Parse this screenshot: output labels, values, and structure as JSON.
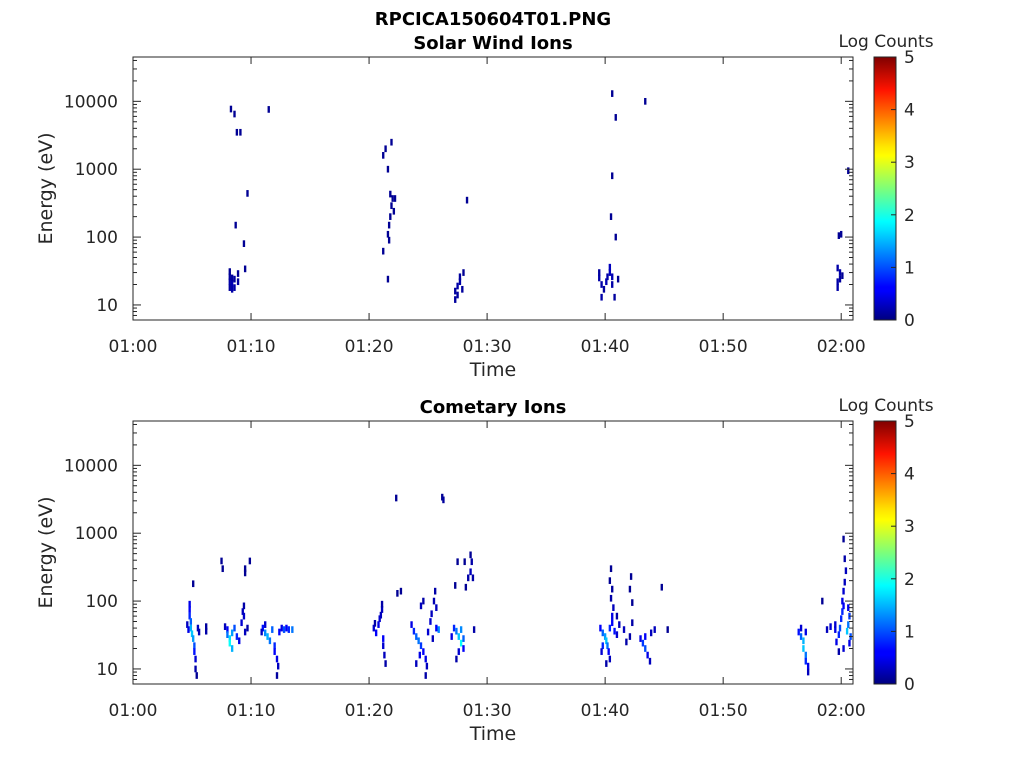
{
  "page_title": "RPCICA150604T01.PNG",
  "colorbar": {
    "label": "Log Counts",
    "ticks": [
      "0",
      "1",
      "2",
      "3",
      "4",
      "5"
    ],
    "min": 0,
    "max": 5
  },
  "chart_data": [
    {
      "type": "heatmap",
      "title": "Solar Wind Ions",
      "xlabel": "Time",
      "ylabel": "Energy (eV)",
      "xlim_min": [
        60,
        121
      ],
      "ylim": [
        6,
        45000
      ],
      "y_scale": "log",
      "x_ticks": [
        "01:00",
        "01:10",
        "01:20",
        "01:30",
        "01:40",
        "01:50",
        "02:00"
      ],
      "y_ticks": [
        "10",
        "100",
        "1000",
        "10000"
      ],
      "colorbar_label": "Log Counts",
      "cells": [
        [
          68.2,
          18,
          0.15
        ],
        [
          68.2,
          22,
          0.2
        ],
        [
          68.2,
          26,
          0.15
        ],
        [
          68.2,
          31,
          0.1
        ],
        [
          68.4,
          17,
          0.2
        ],
        [
          68.4,
          21,
          0.25
        ],
        [
          68.4,
          25,
          0.15
        ],
        [
          68.6,
          18,
          0.2
        ],
        [
          68.6,
          24,
          0.15
        ],
        [
          68.9,
          22,
          0.15
        ],
        [
          68.9,
          29,
          0.1
        ],
        [
          69.5,
          34,
          0.1
        ],
        [
          68.3,
          7700,
          0.1
        ],
        [
          68.6,
          6500,
          0.1
        ],
        [
          68.8,
          3500,
          0.1
        ],
        [
          69.1,
          3500,
          0.1
        ],
        [
          68.7,
          150,
          0.1
        ],
        [
          69.7,
          440,
          0.1
        ],
        [
          69.4,
          80,
          0.1
        ],
        [
          71.5,
          7600,
          0.1
        ],
        [
          81.2,
          1600,
          0.1
        ],
        [
          81.4,
          2000,
          0.1
        ],
        [
          81.6,
          1000,
          0.1
        ],
        [
          81.9,
          2500,
          0.1
        ],
        [
          81.8,
          430,
          0.1
        ],
        [
          82.0,
          370,
          0.1
        ],
        [
          82.2,
          370,
          0.1
        ],
        [
          81.9,
          290,
          0.1
        ],
        [
          82.1,
          240,
          0.1
        ],
        [
          81.8,
          200,
          0.1
        ],
        [
          81.7,
          150,
          0.1
        ],
        [
          81.6,
          110,
          0.1
        ],
        [
          81.7,
          90,
          0.1
        ],
        [
          81.2,
          62,
          0.1
        ],
        [
          81.6,
          24,
          0.1
        ],
        [
          87.3,
          12,
          0.15
        ],
        [
          87.3,
          16,
          0.15
        ],
        [
          87.5,
          14,
          0.15
        ],
        [
          87.5,
          19,
          0.2
        ],
        [
          87.7,
          22,
          0.2
        ],
        [
          87.7,
          26,
          0.15
        ],
        [
          87.9,
          17,
          0.15
        ],
        [
          88.0,
          30,
          0.1
        ],
        [
          88.3,
          350,
          0.1
        ],
        [
          99.5,
          30,
          0.15
        ],
        [
          99.5,
          25,
          0.2
        ],
        [
          99.7,
          20,
          0.2
        ],
        [
          99.7,
          13,
          0.2
        ],
        [
          99.9,
          17,
          0.15
        ],
        [
          100.1,
          22,
          0.25
        ],
        [
          100.2,
          26,
          0.2
        ],
        [
          100.4,
          36,
          0.3
        ],
        [
          100.4,
          30,
          0.3
        ],
        [
          100.6,
          26,
          0.25
        ],
        [
          100.6,
          20,
          0.2
        ],
        [
          100.8,
          13,
          0.15
        ],
        [
          101.1,
          24,
          0.1
        ],
        [
          100.6,
          13000,
          0.1
        ],
        [
          100.6,
          800,
          0.1
        ],
        [
          100.5,
          200,
          0.1
        ],
        [
          100.9,
          100,
          0.1
        ],
        [
          100.9,
          5800,
          0.1
        ],
        [
          103.4,
          10000,
          0.1
        ],
        [
          119.7,
          22,
          0.2
        ],
        [
          119.7,
          18,
          0.2
        ],
        [
          119.7,
          35,
          0.2
        ],
        [
          119.9,
          30,
          0.2
        ],
        [
          119.9,
          24,
          0.15
        ],
        [
          120.0,
          110,
          0.1
        ],
        [
          119.8,
          105,
          0.1
        ],
        [
          120.1,
          27,
          0.1
        ],
        [
          120.6,
          950,
          0.1
        ]
      ]
    },
    {
      "type": "heatmap",
      "title": "Cometary Ions",
      "xlabel": "Time",
      "ylabel": "Energy (eV)",
      "xlim_min": [
        60,
        121
      ],
      "ylim": [
        6,
        45000
      ],
      "y_scale": "log",
      "x_ticks": [
        "01:00",
        "01:10",
        "01:20",
        "01:30",
        "01:40",
        "01:50",
        "02:00"
      ],
      "y_ticks": [
        "10",
        "100",
        "1000",
        "10000"
      ],
      "colorbar_label": "Log Counts",
      "cells": [
        [
          64.8,
          90,
          0.5
        ],
        [
          64.8,
          75,
          0.6
        ],
        [
          64.8,
          60,
          0.8
        ],
        [
          64.9,
          50,
          1.1
        ],
        [
          64.9,
          40,
          1.5
        ],
        [
          65.0,
          33,
          1.6
        ],
        [
          65.1,
          28,
          1.4
        ],
        [
          65.2,
          22,
          1.0
        ],
        [
          65.2,
          18,
          0.7
        ],
        [
          65.3,
          14,
          0.4
        ],
        [
          65.3,
          10,
          0.2
        ],
        [
          65.4,
          8,
          0.1
        ],
        [
          64.6,
          45,
          0.3
        ],
        [
          64.7,
          38,
          0.5
        ],
        [
          65.5,
          40,
          0.3
        ],
        [
          65.6,
          35,
          0.25
        ],
        [
          66.2,
          36,
          0.2
        ],
        [
          66.2,
          42,
          0.15
        ],
        [
          65.1,
          180,
          0.1
        ],
        [
          68.0,
          38,
          0.6
        ],
        [
          68.0,
          32,
          1.2
        ],
        [
          68.2,
          28,
          1.7
        ],
        [
          68.2,
          24,
          1.9
        ],
        [
          68.4,
          20,
          1.5
        ],
        [
          68.4,
          34,
          1.4
        ],
        [
          68.6,
          40,
          1.0
        ],
        [
          68.8,
          30,
          0.8
        ],
        [
          69.0,
          26,
          0.5
        ],
        [
          69.2,
          48,
          0.4
        ],
        [
          69.3,
          70,
          0.3
        ],
        [
          69.4,
          85,
          0.2
        ],
        [
          69.4,
          60,
          0.35
        ],
        [
          69.5,
          35,
          0.3
        ],
        [
          67.8,
          42,
          0.3
        ],
        [
          69.7,
          40,
          0.2
        ],
        [
          69.5,
          260,
          0.1
        ],
        [
          69.5,
          300,
          0.1
        ],
        [
          67.5,
          390,
          0.1
        ],
        [
          67.6,
          300,
          0.1
        ],
        [
          69.9,
          390,
          0.1
        ],
        [
          71.0,
          40,
          0.7
        ],
        [
          71.2,
          34,
          1.3
        ],
        [
          71.4,
          30,
          1.5
        ],
        [
          71.6,
          26,
          1.2
        ],
        [
          71.8,
          38,
          1.1
        ],
        [
          72.0,
          22,
          0.8
        ],
        [
          72.0,
          18,
          0.6
        ],
        [
          72.2,
          14,
          0.5
        ],
        [
          72.3,
          11,
          0.3
        ],
        [
          72.2,
          8,
          0.15
        ],
        [
          72.4,
          35,
          0.6
        ],
        [
          72.6,
          40,
          0.5
        ],
        [
          72.8,
          38,
          1.0
        ],
        [
          73.0,
          40,
          0.6
        ],
        [
          73.2,
          38,
          0.8
        ],
        [
          73.5,
          38,
          1.2
        ],
        [
          71.2,
          45,
          0.4
        ],
        [
          70.9,
          35,
          0.3
        ],
        [
          80.4,
          40,
          0.4
        ],
        [
          80.6,
          34,
          0.6
        ],
        [
          80.8,
          45,
          0.5
        ],
        [
          80.9,
          55,
          0.4
        ],
        [
          81.0,
          62,
          0.3
        ],
        [
          81.1,
          75,
          0.3
        ],
        [
          81.1,
          90,
          0.2
        ],
        [
          81.2,
          28,
          0.6
        ],
        [
          81.2,
          22,
          0.4
        ],
        [
          81.3,
          16,
          0.3
        ],
        [
          81.4,
          12,
          0.2
        ],
        [
          80.5,
          47,
          0.2
        ],
        [
          82.3,
          3300,
          0.1
        ],
        [
          82.4,
          130,
          0.1
        ],
        [
          82.7,
          140,
          0.1
        ],
        [
          86.2,
          3400,
          0.1
        ],
        [
          86.3,
          3100,
          0.15
        ],
        [
          83.6,
          45,
          0.5
        ],
        [
          83.8,
          36,
          0.8
        ],
        [
          84.0,
          30,
          1.1
        ],
        [
          84.2,
          26,
          1.2
        ],
        [
          84.4,
          22,
          0.9
        ],
        [
          84.6,
          18,
          0.6
        ],
        [
          84.8,
          14,
          0.5
        ],
        [
          84.9,
          11,
          0.3
        ],
        [
          84.8,
          8,
          0.2
        ],
        [
          84.3,
          16,
          0.5
        ],
        [
          84.0,
          12,
          0.3
        ],
        [
          85.0,
          35,
          0.4
        ],
        [
          85.2,
          50,
          0.4
        ],
        [
          85.3,
          65,
          0.3
        ],
        [
          85.5,
          100,
          0.25
        ],
        [
          85.6,
          140,
          0.2
        ],
        [
          85.4,
          28,
          0.3
        ],
        [
          85.7,
          40,
          0.6
        ],
        [
          85.9,
          38,
          1.3
        ],
        [
          85.7,
          80,
          0.3
        ],
        [
          84.4,
          85,
          0.3
        ],
        [
          84.6,
          100,
          0.2
        ],
        [
          87.0,
          30,
          0.5
        ],
        [
          87.2,
          40,
          0.8
        ],
        [
          87.4,
          36,
          1.2
        ],
        [
          87.6,
          30,
          1.6
        ],
        [
          87.8,
          24,
          1.9
        ],
        [
          87.8,
          38,
          1.3
        ],
        [
          88.0,
          28,
          1.1
        ],
        [
          88.0,
          20,
          0.6
        ],
        [
          87.6,
          18,
          0.4
        ],
        [
          87.4,
          14,
          0.2
        ],
        [
          88.4,
          220,
          0.2
        ],
        [
          88.6,
          270,
          0.3
        ],
        [
          88.7,
          380,
          0.2
        ],
        [
          88.6,
          480,
          0.1
        ],
        [
          88.8,
          220,
          0.2
        ],
        [
          88.2,
          160,
          0.1
        ],
        [
          87.3,
          170,
          0.1
        ],
        [
          88.1,
          380,
          0.1
        ],
        [
          88.9,
          38,
          0.2
        ],
        [
          87.5,
          380,
          0.1
        ],
        [
          99.6,
          40,
          0.6
        ],
        [
          99.8,
          34,
          1.1
        ],
        [
          100.0,
          30,
          1.4
        ],
        [
          100.1,
          26,
          1.6
        ],
        [
          100.2,
          22,
          1.2
        ],
        [
          99.8,
          22,
          0.8
        ],
        [
          99.7,
          18,
          0.4
        ],
        [
          100.3,
          18,
          0.6
        ],
        [
          100.4,
          14,
          0.3
        ],
        [
          100.1,
          12,
          0.2
        ],
        [
          100.4,
          40,
          0.8
        ],
        [
          100.6,
          48,
          0.6
        ],
        [
          100.6,
          60,
          0.5
        ],
        [
          100.7,
          80,
          0.3
        ],
        [
          100.5,
          110,
          0.2
        ],
        [
          100.6,
          150,
          0.15
        ],
        [
          100.4,
          200,
          0.1
        ],
        [
          100.5,
          300,
          0.1
        ],
        [
          100.8,
          36,
          0.7
        ],
        [
          101.0,
          32,
          0.4
        ],
        [
          101.2,
          45,
          0.3
        ],
        [
          101.0,
          60,
          0.2
        ],
        [
          101.6,
          38,
          0.3
        ],
        [
          101.8,
          25,
          0.2
        ],
        [
          102.1,
          30,
          0.2
        ],
        [
          102.3,
          48,
          0.2
        ],
        [
          102.1,
          150,
          0.1
        ],
        [
          102.2,
          230,
          0.1
        ],
        [
          102.3,
          95,
          0.1
        ],
        [
          103.0,
          28,
          0.5
        ],
        [
          103.2,
          24,
          0.9
        ],
        [
          103.4,
          20,
          1.0
        ],
        [
          103.4,
          30,
          0.6
        ],
        [
          103.6,
          16,
          0.5
        ],
        [
          103.8,
          13,
          0.3
        ],
        [
          103.9,
          34,
          0.3
        ],
        [
          104.2,
          38,
          0.3
        ],
        [
          104.8,
          160,
          0.1
        ],
        [
          105.3,
          38,
          0.1
        ],
        [
          116.4,
          35,
          0.7
        ],
        [
          116.6,
          30,
          1.1
        ],
        [
          116.8,
          26,
          1.5
        ],
        [
          116.8,
          20,
          1.6
        ],
        [
          117.0,
          16,
          1.2
        ],
        [
          117.0,
          13,
          0.8
        ],
        [
          117.2,
          11,
          0.5
        ],
        [
          117.0,
          35,
          0.5
        ],
        [
          116.6,
          40,
          0.4
        ],
        [
          117.2,
          9,
          0.3
        ],
        [
          118.4,
          100,
          0.1
        ],
        [
          118.8,
          38,
          0.3
        ],
        [
          119.1,
          42,
          0.4
        ],
        [
          119.5,
          38,
          0.5
        ],
        [
          119.5,
          45,
          0.4
        ],
        [
          119.6,
          25,
          0.5
        ],
        [
          119.8,
          32,
          0.8
        ],
        [
          119.9,
          40,
          1.0
        ],
        [
          120.0,
          55,
          0.8
        ],
        [
          120.1,
          70,
          0.8
        ],
        [
          120.2,
          85,
          0.6
        ],
        [
          120.1,
          100,
          0.5
        ],
        [
          120.2,
          140,
          0.4
        ],
        [
          120.3,
          190,
          0.3
        ],
        [
          120.4,
          280,
          0.3
        ],
        [
          120.3,
          420,
          0.2
        ],
        [
          120.2,
          820,
          0.1
        ],
        [
          120.5,
          36,
          1.6
        ],
        [
          120.6,
          45,
          1.2
        ],
        [
          120.7,
          60,
          0.9
        ],
        [
          120.6,
          80,
          0.5
        ],
        [
          120.8,
          30,
          1.0
        ],
        [
          120.7,
          24,
          0.5
        ],
        [
          120.2,
          20,
          0.4
        ],
        [
          119.8,
          18,
          0.2
        ]
      ]
    }
  ]
}
